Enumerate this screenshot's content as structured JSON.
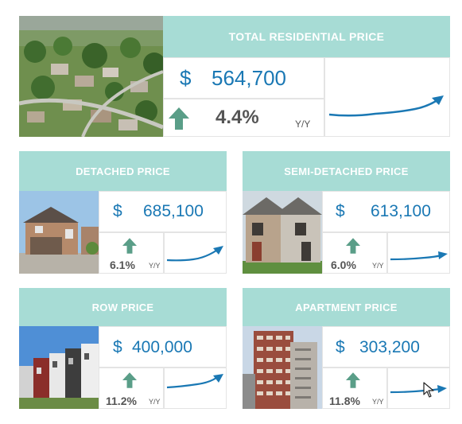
{
  "colors": {
    "header": "#a7dcd5",
    "price": "#1a78b4",
    "arrow": "#5a9e88",
    "text": "#555555",
    "line": "#1a78b4"
  },
  "total": {
    "title": "TOTAL RESIDENTIAL PRICE",
    "currency": "$",
    "price": "564,700",
    "change": "4.4%",
    "period": "Y/Y",
    "arrow_icon": "up-arrow-icon",
    "image": "aerial-neighbourhood-photo"
  },
  "cards": [
    {
      "title": "DETACHED PRICE",
      "currency": "$",
      "price": "685,100",
      "change": "6.1%",
      "period": "Y/Y",
      "arrow_icon": "up-arrow-icon",
      "image": "detached-house-photo"
    },
    {
      "title": "SEMI-DETACHED PRICE",
      "currency": "$",
      "price": "613,100",
      "change": "6.0%",
      "period": "Y/Y",
      "arrow_icon": "up-arrow-icon",
      "image": "semi-detached-house-photo"
    },
    {
      "title": "ROW PRICE",
      "currency": "$",
      "price": "400,000",
      "change": "11.2%",
      "period": "Y/Y",
      "arrow_icon": "up-arrow-icon",
      "image": "row-houses-photo"
    },
    {
      "title": "APARTMENT PRICE",
      "currency": "$",
      "price": "303,200",
      "change": "11.8%",
      "period": "Y/Y",
      "arrow_icon": "up-arrow-icon",
      "image": "apartment-tower-photo"
    }
  ],
  "cursor_icon": "mouse-pointer-icon"
}
